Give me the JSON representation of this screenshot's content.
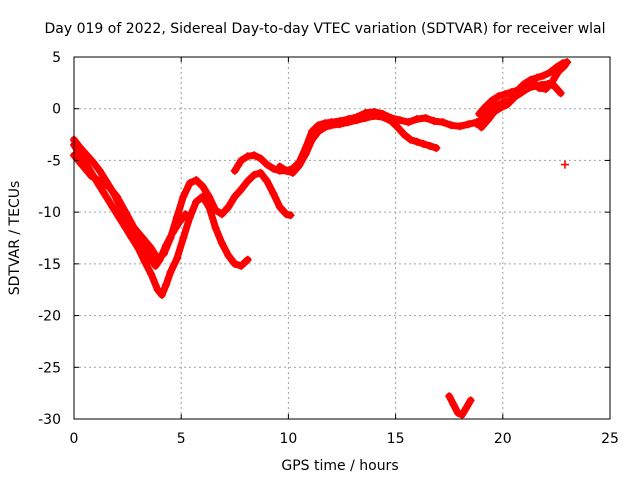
{
  "chart_data": {
    "type": "scatter",
    "title": "Day 019 of 2022, Sidereal Day-to-day VTEC variation (SDTVAR) for receiver wlal",
    "xlabel": "GPS time / hours",
    "ylabel": "SDTVAR / TECUs",
    "xlim": [
      0,
      25
    ],
    "ylim": [
      -30,
      5
    ],
    "xticks": [
      0,
      5,
      10,
      15,
      20,
      25
    ],
    "yticks": [
      -30,
      -25,
      -20,
      -15,
      -10,
      -5,
      0,
      5
    ],
    "grid": true,
    "marker": "plus",
    "color": "#ff0000",
    "series": [
      {
        "x": [
          0.0,
          0.3,
          0.6,
          0.9,
          1.2,
          1.5,
          1.8,
          2.1,
          2.4,
          2.7,
          3.0,
          3.3,
          3.6,
          3.9,
          4.1,
          4.3,
          4.5,
          4.8,
          5.1,
          5.4,
          5.7,
          6.0,
          6.3,
          6.6,
          6.9,
          7.2,
          7.5,
          7.8,
          8.1
        ],
        "y": [
          -3.5,
          -4.5,
          -5.5,
          -6.5,
          -7.5,
          -8.5,
          -9.5,
          -10.5,
          -11.5,
          -12.5,
          -13.5,
          -14.8,
          -16.0,
          -17.5,
          -18.0,
          -17.0,
          -15.8,
          -14.5,
          -12.5,
          -10.5,
          -9.0,
          -8.5,
          -9.5,
          -11.5,
          -13.0,
          -14.2,
          -15.0,
          -15.2,
          -14.6
        ]
      },
      {
        "x": [
          0.0,
          0.4,
          0.8,
          1.2,
          1.6,
          2.0,
          2.4,
          2.8,
          3.2,
          3.6,
          3.9,
          4.2,
          4.5,
          4.8,
          5.1,
          5.4,
          5.7,
          6.0,
          6.3,
          6.6,
          6.9,
          7.2,
          7.5,
          7.8,
          8.1,
          8.4,
          8.7,
          9.0,
          9.3,
          9.6,
          9.9,
          10.1
        ],
        "y": [
          -4.5,
          -5.5,
          -6.5,
          -7.0,
          -7.5,
          -8.5,
          -10.0,
          -11.5,
          -12.5,
          -13.5,
          -14.5,
          -14.0,
          -12.5,
          -10.5,
          -8.5,
          -7.2,
          -6.9,
          -7.5,
          -8.5,
          -9.8,
          -10.2,
          -9.5,
          -8.5,
          -7.8,
          -7.0,
          -6.4,
          -6.2,
          -7.0,
          -8.2,
          -9.5,
          -10.2,
          -10.3
        ]
      },
      {
        "x": [
          0.0,
          0.3,
          0.6,
          0.9,
          1.2,
          1.5,
          1.8,
          2.1,
          2.4,
          2.7,
          3.0,
          3.3,
          3.6,
          3.8,
          4.0,
          4.3,
          4.6,
          4.9,
          5.2
        ],
        "y": [
          -3.0,
          -3.8,
          -4.5,
          -5.2,
          -6.0,
          -7.0,
          -8.0,
          -9.2,
          -10.5,
          -11.8,
          -12.8,
          -13.6,
          -14.6,
          -15.2,
          -14.6,
          -13.2,
          -12.0,
          -11.0,
          -10.2
        ]
      },
      {
        "x": [
          7.5,
          7.8,
          8.1,
          8.4,
          8.7,
          9.0,
          9.3,
          9.6,
          9.9,
          10.2,
          10.5,
          10.8,
          11.1,
          11.4,
          11.7,
          12.0,
          12.4,
          12.8,
          13.2,
          13.6,
          14.0,
          14.4,
          14.8,
          15.2,
          15.6,
          16.0,
          16.4,
          16.8,
          17.2,
          17.6,
          18.0,
          18.4,
          18.8,
          19.2
        ],
        "y": [
          -6.0,
          -5.0,
          -4.6,
          -4.5,
          -4.8,
          -5.4,
          -5.8,
          -6.0,
          -6.0,
          -5.8,
          -5.2,
          -3.8,
          -2.2,
          -1.6,
          -1.4,
          -1.3,
          -1.2,
          -1.0,
          -0.8,
          -0.4,
          -0.3,
          -0.5,
          -0.9,
          -1.1,
          -1.3,
          -1.0,
          -0.9,
          -1.2,
          -1.3,
          -1.6,
          -1.7,
          -1.5,
          -1.3,
          -1.0
        ]
      },
      {
        "x": [
          9.6,
          9.9,
          10.2,
          10.5,
          10.8,
          11.1,
          11.4,
          11.7,
          12.0,
          12.4,
          12.8,
          13.2,
          13.6,
          14.0,
          14.4,
          14.8,
          15.1,
          15.4,
          15.7,
          16.0,
          16.3,
          16.6,
          16.9
        ],
        "y": [
          -5.6,
          -6.0,
          -6.2,
          -5.5,
          -4.4,
          -3.0,
          -2.2,
          -1.8,
          -1.6,
          -1.5,
          -1.3,
          -1.1,
          -0.9,
          -0.7,
          -0.8,
          -1.2,
          -1.8,
          -2.5,
          -3.0,
          -3.2,
          -3.4,
          -3.6,
          -3.8
        ]
      },
      {
        "x": [
          18.8,
          19.1,
          19.4,
          19.7,
          20.0,
          20.3,
          20.6,
          20.9,
          21.2,
          21.5,
          21.8,
          22.1,
          22.4,
          22.7
        ],
        "y": [
          -1.5,
          -0.8,
          -0.2,
          0.3,
          0.6,
          0.8,
          1.2,
          1.6,
          2.0,
          2.2,
          2.3,
          2.4,
          2.2,
          1.5
        ]
      },
      {
        "x": [
          18.9,
          19.2,
          19.5,
          19.8,
          20.1,
          20.4,
          20.7,
          21.0,
          21.3,
          21.6,
          21.9,
          22.2,
          22.5,
          22.8,
          23.0
        ],
        "y": [
          -0.5,
          0.2,
          0.8,
          1.2,
          1.4,
          1.6,
          1.8,
          2.4,
          2.8,
          3.0,
          3.2,
          3.5,
          4.0,
          4.4,
          4.5
        ]
      },
      {
        "x": [
          19.0,
          19.3,
          19.6,
          19.9,
          20.2,
          20.5,
          20.8,
          21.1,
          21.4,
          21.7,
          22.0,
          22.3,
          22.6,
          22.9
        ],
        "y": [
          -1.8,
          -1.1,
          -0.3,
          0.1,
          0.4,
          1.0,
          1.8,
          2.3,
          2.5,
          2.0,
          1.9,
          2.6,
          3.6,
          4.2
        ]
      },
      {
        "x": [
          17.5,
          17.7,
          17.9,
          18.1,
          18.3,
          18.5
        ],
        "y": [
          -27.8,
          -28.6,
          -29.4,
          -29.6,
          -28.9,
          -28.2
        ]
      },
      {
        "x": [
          22.9
        ],
        "y": [
          -5.4
        ]
      }
    ]
  }
}
